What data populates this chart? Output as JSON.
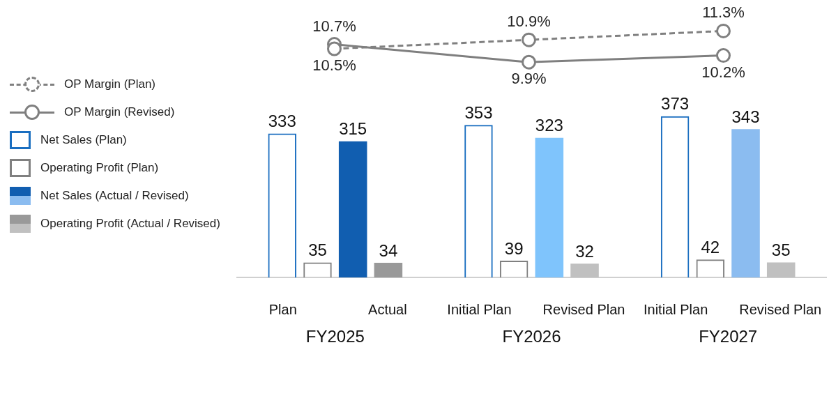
{
  "chart_data": [
    {
      "type": "line",
      "categories": [
        null,
        null,
        null
      ],
      "series": [
        {
          "name": "OP Margin (Plan)",
          "color": "#808080",
          "line_style": "dashed",
          "marker": "circle",
          "values": [
            10.5,
            10.9,
            11.3
          ],
          "value_labels": [
            "10.5%",
            "10.9%",
            "11.3%"
          ]
        },
        {
          "name": "OP Margin (Revised)",
          "color": "#7f7f7f",
          "line_style": "solid",
          "marker": "circle",
          "values": [
            10.7,
            9.9,
            10.2
          ],
          "value_labels": [
            "10.7%",
            "9.9%",
            "10.2%"
          ]
        }
      ],
      "legend": "left",
      "grid": false,
      "tick_labels": false
    },
    {
      "type": "bar",
      "categories": [
        "FY2025",
        "FY2026",
        "FY2027"
      ],
      "series": [
        {
          "name": "Net Sales (Plan)",
          "color": "#1a6ec0",
          "values": [
            333,
            353,
            373
          ]
        },
        {
          "name": "Operating Profit (Plan)",
          "color": "#808080",
          "values": [
            35,
            39,
            42
          ]
        },
        {
          "name": "Net Sales (Actual / Revised)",
          "colors": [
            "#115eb0",
            "#7fc4fc",
            "#8bbcf0"
          ],
          "values": [
            315,
            323,
            343
          ]
        },
        {
          "name": "Operating Profit (Actual / Revised)",
          "colors": [
            "#999999",
            "#c0c0c0",
            "#c0c0c0"
          ],
          "values": [
            34,
            32,
            35
          ]
        }
      ],
      "data_labels": true,
      "legend": "left",
      "grid": false,
      "tick_labels": "x",
      "annotations": [
        "Plan",
        "Actual",
        "Initial Plan",
        "Revised Plan",
        "Initial Plan",
        "Revised Plan"
      ]
    }
  ]
}
